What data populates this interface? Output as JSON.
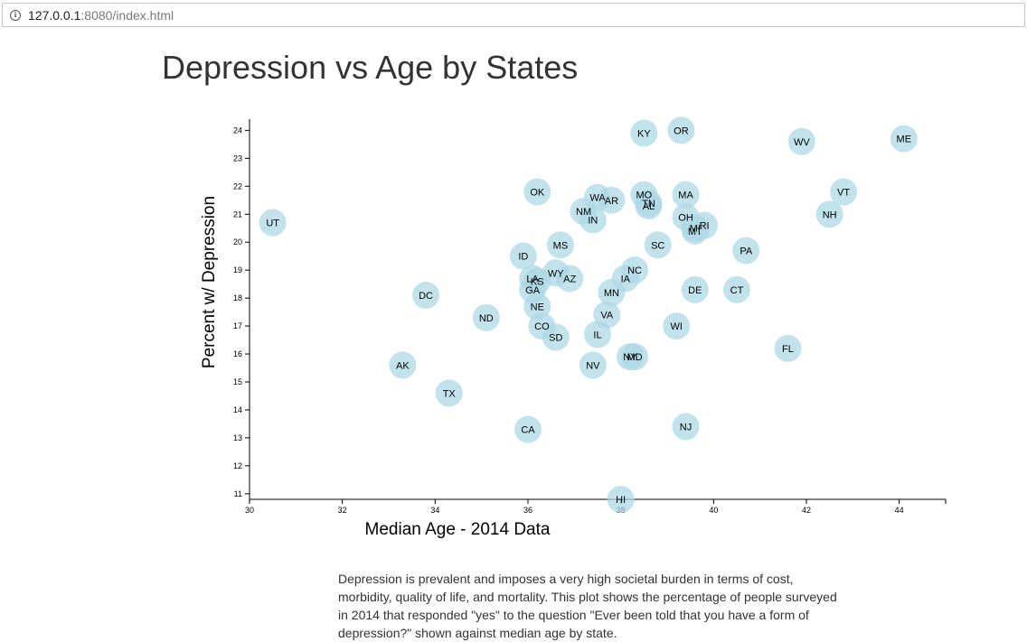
{
  "browser": {
    "url_host": "127.0.0.1",
    "url_rest": ":8080/index.html",
    "info_icon": "info-icon"
  },
  "page": {
    "title": "Depression vs Age by States",
    "description": "Depression is prevalent and imposes a very high societal burden in terms of cost, morbidity, quality of life, and mortality. This plot shows the percentage of people surveyed in 2014 that responded \"yes\" to the question \"Ever been told that you have a form of depression?\" shown against median age by state."
  },
  "chart_data": {
    "type": "scatter",
    "title": "Depression vs Age by States",
    "xlabel": "Median Age - 2014 Data",
    "ylabel": "Percent w/ Depression",
    "xlim": [
      30,
      45
    ],
    "ylim": [
      10.8,
      24.4
    ],
    "xticks": [
      30,
      32,
      34,
      36,
      38,
      40,
      42,
      44
    ],
    "yticks": [
      11,
      12,
      13,
      14,
      15,
      16,
      17,
      18,
      19,
      20,
      21,
      22,
      23,
      24
    ],
    "marker_color": "#add8e6",
    "grid": false,
    "points": [
      {
        "label": "UT",
        "x": 30.5,
        "y": 20.7
      },
      {
        "label": "AK",
        "x": 33.3,
        "y": 15.6
      },
      {
        "label": "TX",
        "x": 34.3,
        "y": 14.6
      },
      {
        "label": "DC",
        "x": 33.8,
        "y": 18.1
      },
      {
        "label": "ND",
        "x": 35.1,
        "y": 17.3
      },
      {
        "label": "CA",
        "x": 36.0,
        "y": 13.3
      },
      {
        "label": "ID",
        "x": 35.9,
        "y": 19.5
      },
      {
        "label": "OK",
        "x": 36.2,
        "y": 21.8
      },
      {
        "label": "LA",
        "x": 36.1,
        "y": 18.7
      },
      {
        "label": "KS",
        "x": 36.2,
        "y": 18.6
      },
      {
        "label": "GA",
        "x": 36.1,
        "y": 18.3
      },
      {
        "label": "NE",
        "x": 36.2,
        "y": 17.7
      },
      {
        "label": "CO",
        "x": 36.3,
        "y": 17.0
      },
      {
        "label": "SD",
        "x": 36.6,
        "y": 16.6
      },
      {
        "label": "WY",
        "x": 36.6,
        "y": 18.9
      },
      {
        "label": "MS",
        "x": 36.7,
        "y": 19.9
      },
      {
        "label": "AZ",
        "x": 36.9,
        "y": 18.7
      },
      {
        "label": "NM",
        "x": 37.2,
        "y": 21.1
      },
      {
        "label": "IN",
        "x": 37.4,
        "y": 20.8
      },
      {
        "label": "WA",
        "x": 37.5,
        "y": 21.6
      },
      {
        "label": "AR",
        "x": 37.8,
        "y": 21.5
      },
      {
        "label": "IL",
        "x": 37.5,
        "y": 16.7
      },
      {
        "label": "NV",
        "x": 37.4,
        "y": 15.6
      },
      {
        "label": "VA",
        "x": 37.7,
        "y": 17.4
      },
      {
        "label": "MN",
        "x": 37.8,
        "y": 18.2
      },
      {
        "label": "HI",
        "x": 38.0,
        "y": 10.8
      },
      {
        "label": "NY",
        "x": 38.2,
        "y": 15.9
      },
      {
        "label": "MD",
        "x": 38.3,
        "y": 15.9
      },
      {
        "label": "IA",
        "x": 38.1,
        "y": 18.7
      },
      {
        "label": "NC",
        "x": 38.3,
        "y": 19.0
      },
      {
        "label": "KY",
        "x": 38.5,
        "y": 23.9
      },
      {
        "label": "MO",
        "x": 38.5,
        "y": 21.7
      },
      {
        "label": "TN",
        "x": 38.6,
        "y": 21.4
      },
      {
        "label": "AL",
        "x": 38.6,
        "y": 21.3
      },
      {
        "label": "SC",
        "x": 38.8,
        "y": 19.9
      },
      {
        "label": "OR",
        "x": 39.3,
        "y": 24.0
      },
      {
        "label": "MA",
        "x": 39.4,
        "y": 21.7
      },
      {
        "label": "OH",
        "x": 39.4,
        "y": 20.9
      },
      {
        "label": "MI",
        "x": 39.6,
        "y": 20.5
      },
      {
        "label": "WI",
        "x": 39.2,
        "y": 17.0
      },
      {
        "label": "NJ",
        "x": 39.4,
        "y": 13.4
      },
      {
        "label": "DE",
        "x": 39.6,
        "y": 18.3
      },
      {
        "label": "RI",
        "x": 39.8,
        "y": 20.6
      },
      {
        "label": "MT",
        "x": 39.6,
        "y": 20.4
      },
      {
        "label": "CT",
        "x": 40.5,
        "y": 18.3
      },
      {
        "label": "PA",
        "x": 40.7,
        "y": 19.7
      },
      {
        "label": "FL",
        "x": 41.6,
        "y": 16.2
      },
      {
        "label": "WV",
        "x": 41.9,
        "y": 23.6
      },
      {
        "label": "NH",
        "x": 42.5,
        "y": 21.0
      },
      {
        "label": "VT",
        "x": 42.8,
        "y": 21.8
      },
      {
        "label": "ME",
        "x": 44.1,
        "y": 23.7
      }
    ]
  }
}
